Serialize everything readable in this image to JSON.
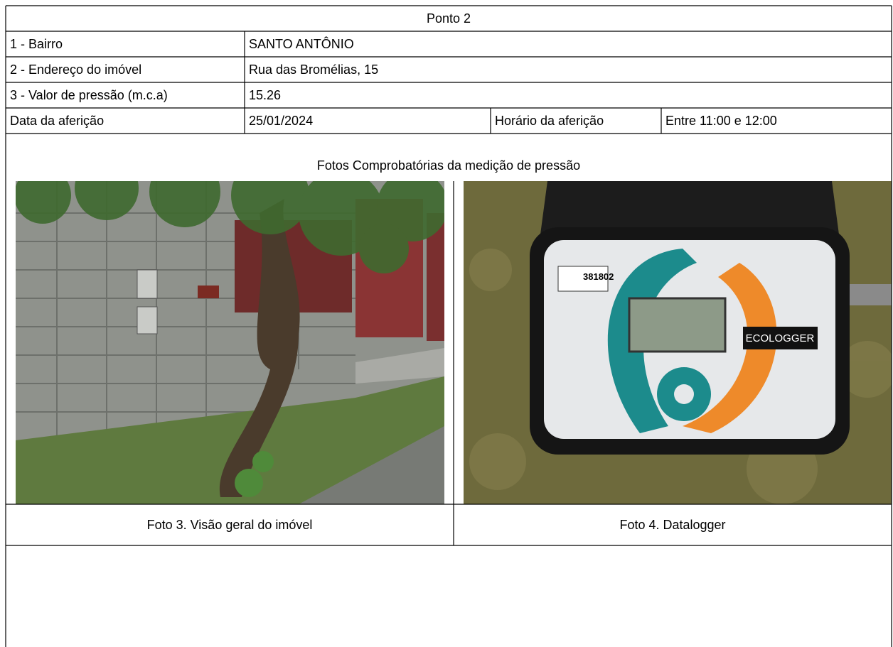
{
  "header": {
    "title": "Ponto 2"
  },
  "table": {
    "rows": [
      [
        "1 - Bairro",
        "SANTO ANTÔNIO"
      ],
      [
        "2 - Endereço do imóvel",
        "Rua das Bromélias, 15"
      ],
      [
        "3 - Valor de pressão (m.c.a)",
        "15.26"
      ],
      [
        "Data da aferição",
        "25/01/2024",
        "Horário da aferição",
        "Entre 11:00 e 12:00"
      ]
    ]
  },
  "photos": {
    "title": "Fotos Comprobatórias da medição de pressão",
    "items": [
      {
        "caption": "Foto 3. Visão geral do imóvel"
      },
      {
        "caption": "Foto 4. Datalogger",
        "serial": "381802",
        "brand": "ECOLOGGER"
      }
    ]
  }
}
